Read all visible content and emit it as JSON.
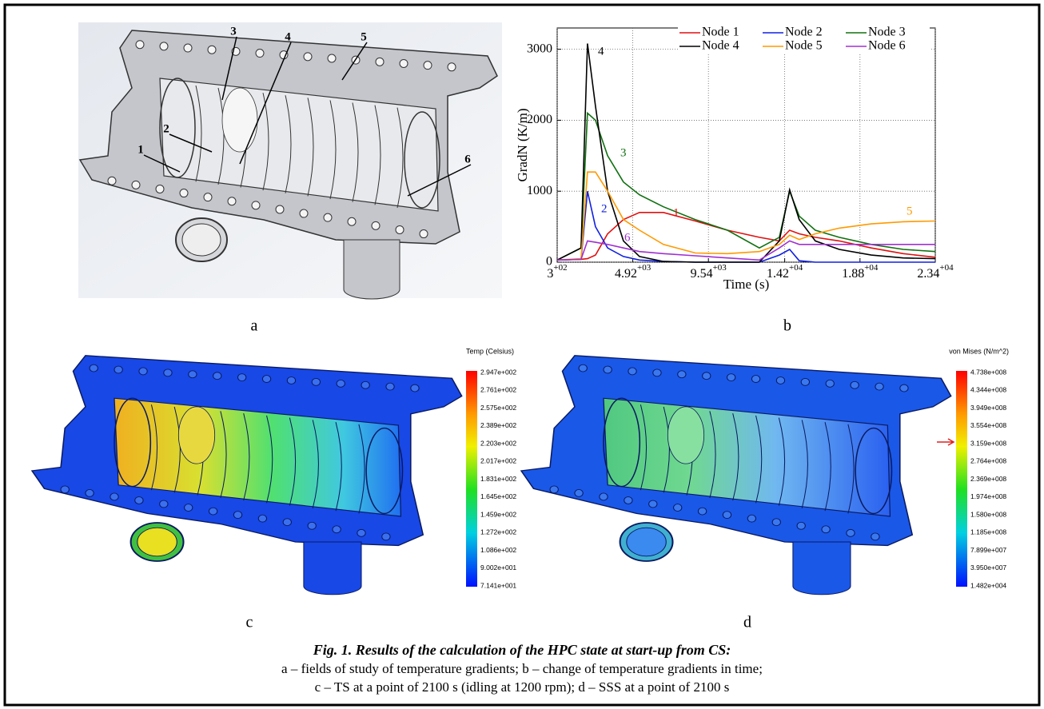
{
  "panels": {
    "a": {
      "letter": "a",
      "labels": [
        "1",
        "2",
        "3",
        "4",
        "5",
        "6"
      ]
    },
    "b": {
      "letter": "b"
    },
    "c": {
      "letter": "c",
      "colorbar_title": "Temp (Celsius)",
      "colorbar_labels": [
        "2.947e+002",
        "2.761e+002",
        "2.575e+002",
        "2.389e+002",
        "2.203e+002",
        "2.017e+002",
        "1.831e+002",
        "1.645e+002",
        "1.459e+002",
        "1.272e+002",
        "1.086e+002",
        "9.002e+001",
        "7.141e+001"
      ]
    },
    "d": {
      "letter": "d",
      "colorbar_title": "von Mises (N/m^2)",
      "colorbar_labels": [
        "4.738e+008",
        "4.344e+008",
        "3.949e+008",
        "3.554e+008",
        "3.159e+008",
        "2.764e+008",
        "2.369e+008",
        "1.974e+008",
        "1.580e+008",
        "1.185e+008",
        "7.899e+007",
        "3.950e+007",
        "1.482e+004"
      ]
    }
  },
  "chart_data": {
    "type": "line",
    "x_label": "Time (s)",
    "y_label": "GradN (K/m)",
    "x": [
      300,
      1760,
      2150,
      2640,
      3380,
      4350,
      5330,
      6790,
      8740,
      10700,
      12650,
      13870,
      14500,
      15090,
      16070,
      17530,
      19490,
      21440,
      23400
    ],
    "series": [
      {
        "name": "Node 1",
        "color": "#e01010",
        "values": [
          30,
          40,
          50,
          100,
          400,
          600,
          700,
          700,
          580,
          450,
          350,
          300,
          450,
          400,
          350,
          300,
          200,
          120,
          70
        ]
      },
      {
        "name": "Node 2",
        "color": "#1020e0",
        "values": [
          30,
          40,
          1000,
          500,
          200,
          80,
          30,
          10,
          0,
          0,
          0,
          100,
          180,
          20,
          0,
          0,
          0,
          0,
          0
        ]
      },
      {
        "name": "Node 3",
        "color": "#107010",
        "values": [
          30,
          200,
          2100,
          2000,
          1500,
          1130,
          950,
          780,
          600,
          450,
          200,
          350,
          1000,
          650,
          450,
          350,
          250,
          180,
          150
        ]
      },
      {
        "name": "Node 4",
        "color": "#000000",
        "values": [
          30,
          200,
          3080,
          2200,
          1000,
          300,
          80,
          10,
          0,
          0,
          0,
          300,
          1020,
          600,
          300,
          180,
          100,
          60,
          50
        ]
      },
      {
        "name": "Node 5",
        "color": "#ff9a00",
        "values": [
          30,
          50,
          1270,
          1270,
          1000,
          600,
          450,
          250,
          130,
          120,
          150,
          250,
          380,
          320,
          400,
          480,
          540,
          570,
          580
        ]
      },
      {
        "name": "Node 6",
        "color": "#a030d0",
        "values": [
          30,
          40,
          300,
          280,
          250,
          200,
          150,
          120,
          90,
          60,
          30,
          200,
          300,
          250,
          250,
          250,
          250,
          250,
          250
        ]
      }
    ],
    "curve_labels": [
      "1",
      "2",
      "3",
      "4",
      "5",
      "6"
    ],
    "xlim": [
      300,
      23400
    ],
    "ylim": [
      0,
      3300
    ],
    "xticks": [
      {
        "value": 300,
        "label": "3+02"
      },
      {
        "value": 4920,
        "label": "4.92+03"
      },
      {
        "value": 9540,
        "label": "9.54+03"
      },
      {
        "value": 14200,
        "label": "1.42+04"
      },
      {
        "value": 18800,
        "label": "1.88+04"
      },
      {
        "value": 23400,
        "label": "2.34+04"
      }
    ],
    "yticks": [
      0,
      1000,
      2000,
      3000
    ],
    "grid": true,
    "legend": "upper right"
  },
  "caption": {
    "title": "Fig. 1. Results of the calculation of the HPC state at start-up from CS:",
    "lines": [
      "a – fields of study of temperature gradients; b – change of temperature gradients in time;",
      "c – TS at a point of 2100 s (idling at 1200 rpm); d – SSS at a point of 2100 s"
    ]
  }
}
